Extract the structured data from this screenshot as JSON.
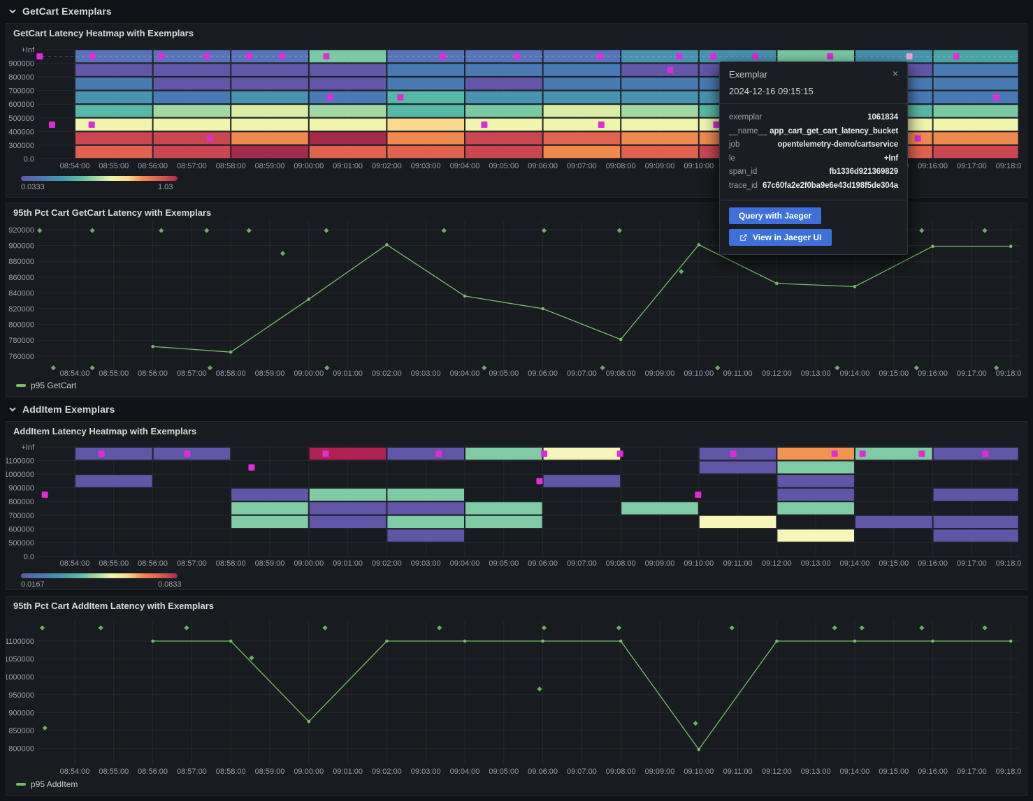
{
  "sections": [
    {
      "label": "GetCart Exemplars"
    },
    {
      "label": "AddItem Exemplars"
    }
  ],
  "time_axis": {
    "ticks": [
      "08:54:00",
      "08:55:00",
      "08:56:00",
      "08:57:00",
      "08:58:00",
      "08:59:00",
      "09:00:00",
      "09:01:00",
      "09:02:00",
      "09:03:00",
      "09:04:00",
      "09:05:00",
      "09:06:00",
      "09:07:00",
      "09:08:00",
      "09:09:00",
      "09:10:00",
      "09:11:00",
      "09:12:00",
      "09:13:00",
      "09:14:00",
      "09:15:00",
      "09:16:00",
      "09:17:00",
      "09:18:00"
    ]
  },
  "exemplar_style": {
    "color": "#df2bd8",
    "selected_color": "#eba6d8"
  },
  "chart_data": [
    {
      "type": "heatmap",
      "title": "GetCart Latency Heatmap with Exemplars",
      "y_ticks": [
        "+Inf",
        "900000",
        "800000",
        "700000",
        "600000",
        "500000",
        "400000",
        "300000",
        "0.0"
      ],
      "legend": {
        "min": "0.0333",
        "max": "1.03"
      },
      "first_col": "08:54:00",
      "col_minutes": 2,
      "palette": {
        "P": "#6156a8",
        "B": "#5873b8",
        "SB": "#4a7ab4",
        "T": "#4793b0",
        "TG": "#4aa5a2",
        "G": "#57b9a5",
        "G2": "#79c9a3",
        "LG": "#a2d8a4",
        "YG": "#d9eda5",
        "PY": "#eff5ad",
        "AM": "#fada8e",
        "O": "#f0894e",
        "RO": "#e0634f",
        "R": "#ca4651",
        "DR": "#a62a4c"
      },
      "columns": [
        [
          "B",
          "P",
          "SB",
          "T",
          "G",
          "PY",
          "R",
          "RO"
        ],
        [
          "B",
          "P",
          "P",
          "SB",
          "LG",
          "PY",
          "R",
          "R"
        ],
        [
          "B",
          "P",
          "P",
          "T",
          "YG",
          "PY",
          "O",
          "DR"
        ],
        [
          "G2",
          "P",
          "P",
          "SB",
          "LG",
          "PY",
          "DR",
          "RO"
        ],
        [
          "B",
          "SB",
          "SB",
          "G",
          "G",
          "AM",
          "O",
          "RO"
        ],
        [
          "B",
          "SB",
          "P",
          "T",
          "G2",
          "PY",
          "R",
          "R"
        ],
        [
          "B",
          "SB",
          "SB",
          "T",
          "YG",
          "PY",
          "RO",
          "O"
        ],
        [
          "T",
          "P",
          "SB",
          "T",
          "LG",
          "PY",
          "O",
          "RO"
        ],
        [
          "T",
          "P",
          "SB",
          "T",
          "G",
          "PY",
          "O",
          "R"
        ],
        [
          "G2",
          "P",
          "SB",
          "SB",
          "LG",
          "PY",
          "O",
          "R"
        ],
        [
          "T",
          "P",
          "SB",
          "SB",
          "G",
          "PY",
          "O",
          "RO"
        ],
        [
          "TG",
          "SB",
          "SB",
          "SB",
          "G2",
          "PY",
          "O",
          "R"
        ]
      ],
      "exemplars": [
        {
          "t": "08:53:06",
          "row": 0
        },
        {
          "t": "08:54:27",
          "row": 0
        },
        {
          "t": "08:56:13",
          "row": 0
        },
        {
          "t": "08:57:23",
          "row": 0
        },
        {
          "t": "08:58:28",
          "row": 0
        },
        {
          "t": "08:59:19",
          "row": 0
        },
        {
          "t": "09:00:27",
          "row": 0
        },
        {
          "t": "09:03:26",
          "row": 0
        },
        {
          "t": "09:05:20",
          "row": 0
        },
        {
          "t": "09:07:28",
          "row": 0
        },
        {
          "t": "09:09:30",
          "row": 0
        },
        {
          "t": "09:10:22",
          "row": 0
        },
        {
          "t": "09:11:27",
          "row": 0
        },
        {
          "t": "09:13:22",
          "row": 0
        },
        {
          "t": "09:15:24",
          "row": 0,
          "selected": true
        },
        {
          "t": "09:16:36",
          "row": 0
        },
        {
          "t": "09:09:16",
          "row": 1
        },
        {
          "t": "09:00:33",
          "row": 3
        },
        {
          "t": "09:02:21",
          "row": 3
        },
        {
          "t": "09:17:38",
          "row": 3
        },
        {
          "t": "08:53:25",
          "row": 5
        },
        {
          "t": "08:54:26",
          "row": 5
        },
        {
          "t": "09:04:30",
          "row": 5
        },
        {
          "t": "09:07:30",
          "row": 5
        },
        {
          "t": "09:10:27",
          "row": 5
        },
        {
          "t": "08:57:28",
          "row": 6
        },
        {
          "t": "09:15:37",
          "row": 6
        }
      ]
    },
    {
      "type": "line",
      "title": "95th Pct Cart GetCart Latency with Exemplars",
      "y_ticks": [
        "920000",
        "900000",
        "880000",
        "860000",
        "840000",
        "820000",
        "800000",
        "780000",
        "760000"
      ],
      "series": [
        {
          "name": "p95 GetCart",
          "color": "#73bf69",
          "points": [
            {
              "t": "08:56:00",
              "v": 772000
            },
            {
              "t": "08:58:00",
              "v": 765000
            },
            {
              "t": "09:00:00",
              "v": 832000
            },
            {
              "t": "09:02:00",
              "v": 901000
            },
            {
              "t": "09:04:00",
              "v": 836000
            },
            {
              "t": "09:06:00",
              "v": 820000
            },
            {
              "t": "09:08:00",
              "v": 781000
            },
            {
              "t": "09:10:00",
              "v": 901000
            },
            {
              "t": "09:12:00",
              "v": 852000
            },
            {
              "t": "09:14:00",
              "v": 848000
            },
            {
              "t": "09:16:00",
              "v": 899000
            },
            {
              "t": "09:18:00",
              "v": 899000
            }
          ]
        }
      ],
      "exemplars": [
        {
          "t": "08:53:06",
          "v": 919000
        },
        {
          "t": "08:54:27",
          "v": 919000
        },
        {
          "t": "08:56:13",
          "v": 919000
        },
        {
          "t": "08:57:23",
          "v": 919000
        },
        {
          "t": "08:58:28",
          "v": 919000
        },
        {
          "t": "09:00:27",
          "v": 919000
        },
        {
          "t": "09:03:28",
          "v": 919000
        },
        {
          "t": "09:06:02",
          "v": 919000
        },
        {
          "t": "09:07:58",
          "v": 919000
        },
        {
          "t": "09:10:52",
          "v": 919000
        },
        {
          "t": "09:13:29",
          "v": 919000
        },
        {
          "t": "09:14:11",
          "v": 919000
        },
        {
          "t": "09:15:43",
          "v": 919000
        },
        {
          "t": "09:17:20",
          "v": 919000
        },
        {
          "t": "08:59:20",
          "v": 890000
        },
        {
          "t": "09:09:33",
          "v": 867000
        },
        {
          "t": "08:53:27",
          "v": 745000
        },
        {
          "t": "08:54:27",
          "v": 745000
        },
        {
          "t": "08:57:28",
          "v": 745000
        },
        {
          "t": "09:00:28",
          "v": 745000
        },
        {
          "t": "09:04:30",
          "v": 745000
        },
        {
          "t": "09:07:32",
          "v": 745000
        },
        {
          "t": "09:10:29",
          "v": 745000
        },
        {
          "t": "09:13:33",
          "v": 745000
        },
        {
          "t": "09:15:35",
          "v": 745000
        },
        {
          "t": "09:17:38",
          "v": 745000
        }
      ]
    },
    {
      "type": "heatmap",
      "title": "AddItem Latency Heatmap with Exemplars",
      "y_ticks": [
        "+Inf",
        "1100000",
        "1000000",
        "900000",
        "800000",
        "700000",
        "600000",
        "500000",
        "0.0"
      ],
      "legend": {
        "min": "0.0167",
        "max": "0.0833"
      },
      "first_col": "08:54:00",
      "col_minutes": 2,
      "palette": {
        "P": "#6055a6",
        "G": "#7fcba5",
        "PY": "#f6f5ba",
        "O": "#f2944f",
        "DR": "#b02052"
      },
      "columns": [
        [
          "P",
          null,
          "P",
          null,
          null,
          null,
          null,
          null
        ],
        [
          "P",
          null,
          null,
          null,
          null,
          null,
          null,
          null
        ],
        [
          null,
          null,
          null,
          "P",
          "G",
          "G",
          null,
          null
        ],
        [
          "DR",
          null,
          null,
          "G",
          "P",
          "P",
          null,
          null
        ],
        [
          "P",
          null,
          null,
          "G",
          "P",
          "G",
          "P",
          null
        ],
        [
          "G",
          null,
          null,
          null,
          "G",
          "G",
          null,
          null
        ],
        [
          "PY",
          null,
          "P",
          null,
          null,
          null,
          null,
          null
        ],
        [
          null,
          null,
          null,
          null,
          "G",
          null,
          null,
          null
        ],
        [
          "P",
          "P",
          null,
          null,
          null,
          "PY",
          null,
          null
        ],
        [
          "O",
          "G",
          "P",
          "P",
          "G",
          null,
          "PY",
          null
        ],
        [
          "G",
          null,
          null,
          null,
          null,
          "P",
          null,
          null
        ],
        [
          "P",
          null,
          null,
          "P",
          null,
          "P",
          "P",
          null
        ]
      ],
      "exemplars": [
        {
          "t": "08:54:41",
          "row": 0
        },
        {
          "t": "08:56:53",
          "row": 0
        },
        {
          "t": "09:00:26",
          "row": 0
        },
        {
          "t": "09:03:20",
          "row": 0
        },
        {
          "t": "09:06:02",
          "row": 0
        },
        {
          "t": "09:07:59",
          "row": 0
        },
        {
          "t": "09:10:53",
          "row": 0
        },
        {
          "t": "09:13:29",
          "row": 0
        },
        {
          "t": "09:14:12",
          "row": 0
        },
        {
          "t": "09:15:43",
          "row": 0
        },
        {
          "t": "09:17:21",
          "row": 0
        },
        {
          "t": "08:58:32",
          "row": 1
        },
        {
          "t": "09:05:55",
          "row": 2
        },
        {
          "t": "08:53:14",
          "row": 3
        },
        {
          "t": "09:09:59",
          "row": 3
        }
      ]
    },
    {
      "type": "line",
      "title": "95th Pct Cart AddItem Latency with Exemplars",
      "y_ticks": [
        "1100000",
        "1050000",
        "1000000",
        "950000",
        "900000",
        "850000",
        "800000"
      ],
      "series": [
        {
          "name": "p95 AddItem",
          "color": "#73bf69",
          "points": [
            {
              "t": "08:56:00",
              "v": 1100000
            },
            {
              "t": "08:58:00",
              "v": 1100000
            },
            {
              "t": "09:00:00",
              "v": 875000
            },
            {
              "t": "09:02:00",
              "v": 1100000
            },
            {
              "t": "09:04:00",
              "v": 1100000
            },
            {
              "t": "09:06:00",
              "v": 1100000
            },
            {
              "t": "09:08:00",
              "v": 1100000
            },
            {
              "t": "09:10:00",
              "v": 797000
            },
            {
              "t": "09:12:00",
              "v": 1100000
            },
            {
              "t": "09:14:00",
              "v": 1100000
            },
            {
              "t": "09:16:00",
              "v": 1100000
            },
            {
              "t": "09:18:00",
              "v": 1100000
            }
          ]
        }
      ],
      "exemplars": [
        {
          "t": "08:53:10",
          "v": 1137000
        },
        {
          "t": "08:54:40",
          "v": 1137000
        },
        {
          "t": "08:56:52",
          "v": 1137000
        },
        {
          "t": "09:00:25",
          "v": 1137000
        },
        {
          "t": "09:03:21",
          "v": 1137000
        },
        {
          "t": "09:06:02",
          "v": 1137000
        },
        {
          "t": "09:07:57",
          "v": 1137000
        },
        {
          "t": "09:10:51",
          "v": 1137000
        },
        {
          "t": "09:13:29",
          "v": 1137000
        },
        {
          "t": "09:14:11",
          "v": 1137000
        },
        {
          "t": "09:15:43",
          "v": 1137000
        },
        {
          "t": "09:17:20",
          "v": 1137000
        },
        {
          "t": "08:53:14",
          "v": 857000
        },
        {
          "t": "08:58:32",
          "v": 1053000
        },
        {
          "t": "09:05:55",
          "v": 966000
        },
        {
          "t": "09:09:55",
          "v": 870000
        }
      ]
    }
  ],
  "tooltip": {
    "title": "Exemplar",
    "close_label": "×",
    "timestamp": "2024-12-16 09:15:15",
    "fields": [
      {
        "label": "exemplar",
        "value": "1061834"
      },
      {
        "label": "__name__",
        "value": "app_cart_get_cart_latency_bucket"
      },
      {
        "label": "job",
        "value": "opentelemetry-demo/cartservice"
      },
      {
        "label": "le",
        "value": "+Inf"
      },
      {
        "label": "span_id",
        "value": "fb1336d921369829"
      },
      {
        "label": "trace_id",
        "value": "67c60fa2e2f0ba9e6e43d198f5de304a"
      }
    ],
    "buttons": [
      {
        "label": "Query with Jaeger",
        "icon": null
      },
      {
        "label": "View in Jaeger UI",
        "icon": "external-link-icon"
      }
    ]
  }
}
